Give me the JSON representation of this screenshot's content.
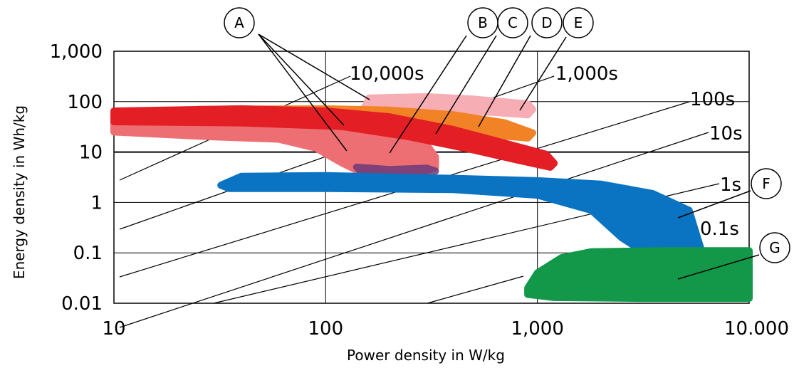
{
  "chart_data": {
    "type": "area",
    "title": "",
    "xlabel": "Power density in W/kg",
    "ylabel": "Energy density in Wh/kg",
    "x_scale": "log",
    "y_scale": "log",
    "xlim": [
      10,
      10000
    ],
    "ylim": [
      0.01,
      1000
    ],
    "x_ticks": [
      {
        "value": 10,
        "label": "10"
      },
      {
        "value": 100,
        "label": "100"
      },
      {
        "value": 1000,
        "label": "1,000"
      },
      {
        "value": 10000,
        "label": "10.000"
      }
    ],
    "y_ticks": [
      {
        "value": 1000,
        "label": "1,000"
      },
      {
        "value": 100,
        "label": "100"
      },
      {
        "value": 10,
        "label": "10"
      },
      {
        "value": 1,
        "label": "1"
      },
      {
        "value": 0.1,
        "label": "0.1"
      },
      {
        "value": 0.01,
        "label": "0.01"
      }
    ],
    "grid": true,
    "time_constant_lines": [
      {
        "label": "10,000s",
        "seconds": 10000
      },
      {
        "label": "1,000s",
        "seconds": 1000
      },
      {
        "label": "100s",
        "seconds": 100
      },
      {
        "label": "10s",
        "seconds": 10
      },
      {
        "label": "1s",
        "seconds": 1
      },
      {
        "label": "0.1s",
        "seconds": 0.1
      }
    ],
    "regions": [
      {
        "label": "A",
        "color": "#ee6f73",
        "x_range": [
          10,
          330
        ],
        "y_range": [
          3.2,
          50
        ]
      },
      {
        "label": "B",
        "color": "#6d3a7a",
        "x_range": [
          140,
          330
        ],
        "y_range": [
          3.2,
          5
        ]
      },
      {
        "label": "C",
        "color": "#e31e25",
        "x_range": [
          10,
          1200
        ],
        "y_range": [
          5,
          70
        ]
      },
      {
        "label": "D",
        "color": "#f28226",
        "x_range": [
          25,
          950
        ],
        "y_range": [
          19,
          75
        ]
      },
      {
        "label": "E",
        "color": "#f6aeb4",
        "x_range": [
          150,
          1000
        ],
        "y_range": [
          50,
          130
        ]
      },
      {
        "label": "F",
        "color": "#0a74c2",
        "x_range": [
          32,
          6000
        ],
        "y_range": [
          0.075,
          3.5
        ]
      },
      {
        "label": "G",
        "color": "#13984a",
        "x_range": [
          900,
          10000
        ],
        "y_range": [
          0.011,
          0.11
        ]
      }
    ]
  }
}
